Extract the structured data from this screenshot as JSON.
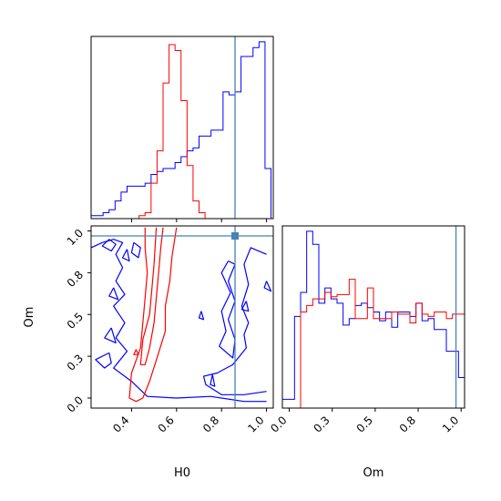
{
  "chart_data": {
    "type": "corner",
    "parameters": [
      "H0",
      "Om"
    ],
    "truth": {
      "H0": 0.86,
      "Om": 0.97
    },
    "truth_color": "#4682b4",
    "series": [
      {
        "color": "#0000ff"
      },
      {
        "color": "#ff0000"
      }
    ],
    "panels": [
      {
        "id": "hist-H0",
        "type": "histogram",
        "xlim": [
          0.22,
          1.03
        ],
        "x_ticks": [
          0.4,
          0.6,
          0.8,
          1.0
        ],
        "bin_edges": [
          0.22,
          0.2467,
          0.2733,
          0.3,
          0.3267,
          0.3533,
          0.38,
          0.4067,
          0.4333,
          0.46,
          0.4867,
          0.5133,
          0.54,
          0.5667,
          0.5933,
          0.62,
          0.6467,
          0.6733,
          0.7,
          0.7267,
          0.7533,
          0.78,
          0.8067,
          0.8333,
          0.86,
          0.8867,
          0.9133,
          0.94,
          0.9667,
          0.9933,
          1.02
        ],
        "series": [
          {
            "color": "#0000ff",
            "counts": [
              1,
              1,
              2,
              3,
              6,
              9,
              11,
              11,
              11,
              12,
              15,
              16,
              17,
              17,
              19,
              21,
              23,
              24,
              28,
              28,
              30,
              30,
              43,
              42,
              43,
              55,
              55,
              58,
              60,
              17
            ]
          },
          {
            "color": "#ff0000",
            "counts": [
              0,
              0,
              0,
              0,
              0,
              0,
              0,
              0,
              1,
              2,
              12,
              23,
              46,
              59,
              57,
              40,
              18,
              6,
              2,
              0,
              0,
              0,
              0,
              0,
              0,
              0,
              0,
              0,
              0,
              0
            ]
          }
        ]
      },
      {
        "id": "contour-H0-Om",
        "type": "contour",
        "xlabel": "H0",
        "ylabel": "Om",
        "xlim": [
          0.22,
          1.03
        ],
        "ylim": [
          -0.06,
          1.03
        ],
        "x_ticks": [
          0.4,
          0.6,
          0.8,
          1.0
        ],
        "y_ticks": [
          0.0,
          0.25,
          0.5,
          0.75,
          1.0
        ],
        "contours": [
          {
            "color": "#0000ff",
            "points": [
              [
                0.22,
                0.9
              ],
              [
                0.27,
                0.93
              ],
              [
                0.32,
                0.95
              ],
              [
                0.36,
                0.93
              ],
              [
                0.33,
                0.86
              ],
              [
                0.36,
                0.78
              ],
              [
                0.33,
                0.7
              ],
              [
                0.37,
                0.62
              ],
              [
                0.32,
                0.55
              ],
              [
                0.37,
                0.45
              ],
              [
                0.33,
                0.36
              ],
              [
                0.38,
                0.28
              ],
              [
                0.32,
                0.18
              ],
              [
                0.4,
                0.1
              ],
              [
                0.47,
                0.01
              ],
              [
                0.6,
                0.0
              ],
              [
                0.75,
                0.01
              ],
              [
                0.9,
                -0.02
              ],
              [
                1.0,
                -0.02
              ]
            ]
          },
          {
            "color": "#0000ff",
            "points": [
              [
                1.0,
                0.86
              ],
              [
                0.93,
                0.9
              ],
              [
                0.9,
                0.8
              ],
              [
                0.92,
                0.68
              ],
              [
                0.89,
                0.55
              ],
              [
                0.92,
                0.45
              ],
              [
                0.9,
                0.38
              ],
              [
                0.91,
                0.3
              ],
              [
                0.85,
                0.2
              ],
              [
                0.78,
                0.15
              ],
              [
                0.72,
                0.13
              ],
              [
                0.73,
                0.08
              ],
              [
                0.8,
                0.02
              ],
              [
                0.9,
                0.02
              ],
              [
                1.0,
                0.04
              ]
            ]
          },
          {
            "color": "#0000ff",
            "points": [
              [
                0.83,
                0.82
              ],
              [
                0.8,
                0.75
              ],
              [
                0.84,
                0.63
              ],
              [
                0.8,
                0.52
              ],
              [
                0.82,
                0.4
              ],
              [
                0.79,
                0.31
              ],
              [
                0.85,
                0.24
              ],
              [
                0.86,
                0.35
              ],
              [
                0.83,
                0.47
              ],
              [
                0.86,
                0.58
              ],
              [
                0.83,
                0.7
              ],
              [
                0.86,
                0.8
              ],
              [
                0.83,
                0.82
              ]
            ]
          },
          {
            "color": "#0000ff",
            "points": [
              [
                0.3,
                0.27
              ],
              [
                0.24,
                0.23
              ],
              [
                0.28,
                0.18
              ],
              [
                0.31,
                0.21
              ],
              [
                0.3,
                0.27
              ]
            ]
          },
          {
            "color": "#0000ff",
            "points": [
              [
                0.31,
                0.42
              ],
              [
                0.28,
                0.36
              ],
              [
                0.33,
                0.33
              ],
              [
                0.31,
                0.42
              ]
            ]
          },
          {
            "color": "#0000ff",
            "points": [
              [
                0.3,
                0.95
              ],
              [
                0.27,
                0.91
              ],
              [
                0.31,
                0.88
              ],
              [
                0.33,
                0.92
              ],
              [
                0.3,
                0.95
              ]
            ]
          },
          {
            "color": "#0000ff",
            "points": [
              [
                0.41,
                0.93
              ],
              [
                0.4,
                0.87
              ],
              [
                0.43,
                0.84
              ],
              [
                0.44,
                0.9
              ],
              [
                0.41,
                0.93
              ]
            ]
          },
          {
            "color": "#0000ff",
            "points": [
              [
                0.32,
                0.66
              ],
              [
                0.3,
                0.61
              ],
              [
                0.34,
                0.59
              ],
              [
                0.32,
                0.66
              ]
            ]
          },
          {
            "color": "#0000ff",
            "points": [
              [
                0.91,
                0.58
              ],
              [
                0.89,
                0.53
              ],
              [
                0.92,
                0.52
              ],
              [
                0.91,
                0.58
              ]
            ]
          },
          {
            "color": "#0000ff",
            "points": [
              [
                0.71,
                0.52
              ],
              [
                0.7,
                0.48
              ],
              [
                0.72,
                0.47
              ],
              [
                0.71,
                0.52
              ]
            ]
          },
          {
            "color": "#0000ff",
            "points": [
              [
                0.76,
                0.14
              ],
              [
                0.75,
                0.08
              ],
              [
                0.77,
                0.07
              ],
              [
                0.76,
                0.14
              ]
            ]
          },
          {
            "color": "#0000ff",
            "points": [
              [
                1.0,
                0.7
              ],
              [
                0.99,
                0.66
              ],
              [
                1.02,
                0.64
              ],
              [
                1.0,
                0.7
              ]
            ]
          },
          {
            "color": "#0000ff",
            "points": [
              [
                0.38,
                0.89
              ],
              [
                0.36,
                0.84
              ],
              [
                0.39,
                0.82
              ],
              [
                0.38,
                0.89
              ]
            ]
          },
          {
            "color": "#ff0000",
            "points": [
              [
                0.6,
                1.02
              ],
              [
                0.58,
                0.85
              ],
              [
                0.57,
                0.7
              ],
              [
                0.55,
                0.55
              ],
              [
                0.55,
                0.4
              ],
              [
                0.52,
                0.27
              ],
              [
                0.48,
                0.1
              ],
              [
                0.45,
                0.0
              ],
              [
                0.42,
                -0.02
              ],
              [
                0.39,
                0.0
              ],
              [
                0.4,
                0.15
              ],
              [
                0.44,
                0.3
              ],
              [
                0.45,
                0.45
              ],
              [
                0.46,
                0.6
              ],
              [
                0.47,
                0.75
              ],
              [
                0.46,
                0.9
              ],
              [
                0.46,
                1.02
              ]
            ]
          },
          {
            "color": "#ff0000",
            "points": [
              [
                0.54,
                1.02
              ],
              [
                0.53,
                0.9
              ],
              [
                0.52,
                0.75
              ],
              [
                0.51,
                0.6
              ],
              [
                0.5,
                0.45
              ],
              [
                0.48,
                0.3
              ],
              [
                0.46,
                0.2
              ],
              [
                0.44,
                0.2
              ],
              [
                0.45,
                0.35
              ],
              [
                0.48,
                0.5
              ],
              [
                0.49,
                0.65
              ],
              [
                0.5,
                0.8
              ],
              [
                0.51,
                1.02
              ]
            ]
          },
          {
            "color": "#ff0000",
            "points": [
              [
                0.42,
                0.29
              ],
              [
                0.41,
                0.26
              ],
              [
                0.43,
                0.26
              ],
              [
                0.42,
                0.29
              ]
            ]
          }
        ]
      },
      {
        "id": "hist-Om",
        "type": "histogram",
        "xlabel": "Om",
        "xlim": [
          -0.04,
          1.02
        ],
        "x_ticks": [
          0.0,
          0.25,
          0.5,
          0.75,
          1.0
        ],
        "bin_edges": [
          -0.04,
          -0.0047,
          0.0307,
          0.066,
          0.1013,
          0.1367,
          0.172,
          0.2073,
          0.2427,
          0.278,
          0.3133,
          0.3487,
          0.384,
          0.4193,
          0.4547,
          0.49,
          0.5253,
          0.5607,
          0.596,
          0.6313,
          0.6667,
          0.702,
          0.7373,
          0.7727,
          0.808,
          0.8433,
          0.8787,
          0.914,
          0.9493,
          0.9847,
          1.02
        ],
        "series": [
          {
            "color": "#0000ff",
            "counts": [
              4,
              4,
              42,
              53,
              81,
              75,
              48,
              55,
              50,
              48,
              38,
              41,
              47,
              48,
              46,
              44,
              40,
              44,
              37,
              44,
              44,
              42,
              48,
              40,
              41,
              36,
              36,
              26,
              26,
              14
            ]
          },
          {
            "color": "#ff0000",
            "counts": [
              0,
              0,
              0,
              44,
              47,
              50,
              50,
              53,
              51,
              52,
              52,
              59,
              41,
              41,
              55,
              41,
              41,
              41,
              44,
              43,
              43,
              39,
              48,
              43,
              42,
              44,
              44,
              41,
              43,
              43
            ]
          }
        ]
      }
    ]
  }
}
